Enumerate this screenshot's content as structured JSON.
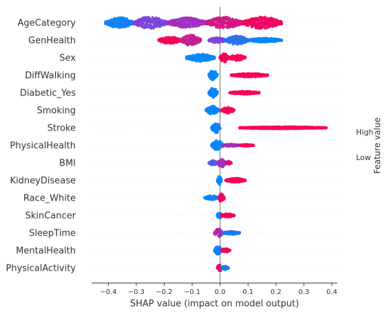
{
  "chart_data": {
    "type": "scatter",
    "chart_style": "shap-beeswarm-summary",
    "title": "",
    "xlabel": "SHAP value (impact on model output)",
    "ylabel": "",
    "xlim": [
      -0.46,
      0.42
    ],
    "x_ticks": [
      -0.4,
      -0.3,
      -0.2,
      -0.1,
      0.0,
      0.1,
      0.2,
      0.3,
      0.4
    ],
    "x_tick_labels": [
      "−0.4",
      "−0.3",
      "−0.2",
      "−0.1",
      "0.0",
      "0.1",
      "0.2",
      "0.3",
      "0.4"
    ],
    "grid": false,
    "colorbar": {
      "label": "Feature value",
      "high_label": "High",
      "low_label": "Low",
      "low_color": "#008bfb",
      "high_color": "#ff0052"
    },
    "features": [
      {
        "name": "AgeCategory",
        "segments": [
          {
            "x0": -0.41,
            "x1": -0.31,
            "value": 0.05,
            "width": 0.9
          },
          {
            "x0": -0.31,
            "x1": -0.19,
            "value": 0.45,
            "width": 1.0
          },
          {
            "x0": -0.19,
            "x1": -0.05,
            "value": 0.6,
            "width": 0.85
          },
          {
            "x0": -0.05,
            "x1": 0.08,
            "value": 0.8,
            "width": 0.95
          },
          {
            "x0": 0.08,
            "x1": 0.22,
            "value": 0.95,
            "width": 1.0
          }
        ]
      },
      {
        "name": "GenHealth",
        "segments": [
          {
            "x0": -0.22,
            "x1": -0.14,
            "value": 1.0,
            "width": 0.6
          },
          {
            "x0": -0.14,
            "x1": -0.07,
            "value": 0.75,
            "width": 0.9
          },
          {
            "x0": -0.04,
            "x1": 0.02,
            "value": 0.45,
            "width": 0.45
          },
          {
            "x0": 0.02,
            "x1": 0.1,
            "value": 0.15,
            "width": 0.75
          },
          {
            "x0": 0.1,
            "x1": 0.22,
            "value": 0.02,
            "width": 0.35
          }
        ]
      },
      {
        "name": "Sex",
        "segments": [
          {
            "x0": -0.12,
            "x1": -0.02,
            "value": 0.0,
            "width": 0.65
          },
          {
            "x0": 0.0,
            "x1": 0.03,
            "value": 0.95,
            "width": 0.75
          },
          {
            "x0": 0.03,
            "x1": 0.09,
            "value": 1.0,
            "width": 0.45
          }
        ]
      },
      {
        "name": "DiffWalking",
        "segments": [
          {
            "x0": -0.04,
            "x1": -0.01,
            "value": 0.0,
            "width": 0.85
          },
          {
            "x0": 0.04,
            "x1": 0.17,
            "value": 1.0,
            "width": 0.3
          }
        ]
      },
      {
        "name": "Diabetic_Yes",
        "segments": [
          {
            "x0": -0.04,
            "x1": -0.01,
            "value": 0.0,
            "width": 0.85
          },
          {
            "x0": 0.035,
            "x1": 0.14,
            "value": 1.0,
            "width": 0.25
          }
        ]
      },
      {
        "name": "Smoking",
        "segments": [
          {
            "x0": -0.05,
            "x1": -0.005,
            "value": 0.0,
            "width": 0.7
          },
          {
            "x0": 0.005,
            "x1": 0.05,
            "value": 1.0,
            "width": 0.55
          }
        ]
      },
      {
        "name": "Stroke",
        "segments": [
          {
            "x0": -0.03,
            "x1": 0.0,
            "value": 0.0,
            "width": 0.9
          },
          {
            "x0": 0.07,
            "x1": 0.38,
            "value": 1.0,
            "width": 0.18
          }
        ]
      },
      {
        "name": "PhysicalHealth",
        "segments": [
          {
            "x0": -0.03,
            "x1": 0.01,
            "value": 0.0,
            "width": 0.85
          },
          {
            "x0": 0.01,
            "x1": 0.07,
            "value": 0.6,
            "width": 0.2
          },
          {
            "x0": 0.07,
            "x1": 0.12,
            "value": 1.0,
            "width": 0.15
          }
        ]
      },
      {
        "name": "BMI",
        "segments": [
          {
            "x0": -0.04,
            "x1": -0.01,
            "value": 0.25,
            "width": 0.4
          },
          {
            "x0": -0.01,
            "x1": 0.02,
            "value": 0.6,
            "width": 0.75
          },
          {
            "x0": 0.02,
            "x1": 0.04,
            "value": 0.85,
            "width": 0.3
          }
        ]
      },
      {
        "name": "KidneyDisease",
        "segments": [
          {
            "x0": -0.01,
            "x1": 0.005,
            "value": 0.0,
            "width": 0.75
          },
          {
            "x0": 0.02,
            "x1": 0.09,
            "value": 1.0,
            "width": 0.35
          }
        ]
      },
      {
        "name": "Race_White",
        "segments": [
          {
            "x0": -0.055,
            "x1": -0.005,
            "value": 0.0,
            "width": 0.35
          },
          {
            "x0": -0.005,
            "x1": 0.015,
            "value": 0.95,
            "width": 0.75
          }
        ]
      },
      {
        "name": "SkinCancer",
        "segments": [
          {
            "x0": -0.01,
            "x1": 0.005,
            "value": 0.0,
            "width": 0.75
          },
          {
            "x0": 0.005,
            "x1": 0.05,
            "value": 1.0,
            "width": 0.3
          }
        ]
      },
      {
        "name": "SleepTime",
        "segments": [
          {
            "x0": -0.02,
            "x1": 0.01,
            "value": 0.65,
            "width": 0.75
          },
          {
            "x0": 0.01,
            "x1": 0.07,
            "value": 0.1,
            "width": 0.25
          }
        ]
      },
      {
        "name": "MentalHealth",
        "segments": [
          {
            "x0": -0.02,
            "x1": 0.005,
            "value": 0.05,
            "width": 0.8
          },
          {
            "x0": 0.005,
            "x1": 0.035,
            "value": 0.95,
            "width": 0.3
          }
        ]
      },
      {
        "name": "PhysicalActivity",
        "segments": [
          {
            "x0": -0.01,
            "x1": 0.005,
            "value": 0.95,
            "width": 0.7
          },
          {
            "x0": 0.005,
            "x1": 0.03,
            "value": 0.05,
            "width": 0.3
          }
        ]
      }
    ]
  }
}
